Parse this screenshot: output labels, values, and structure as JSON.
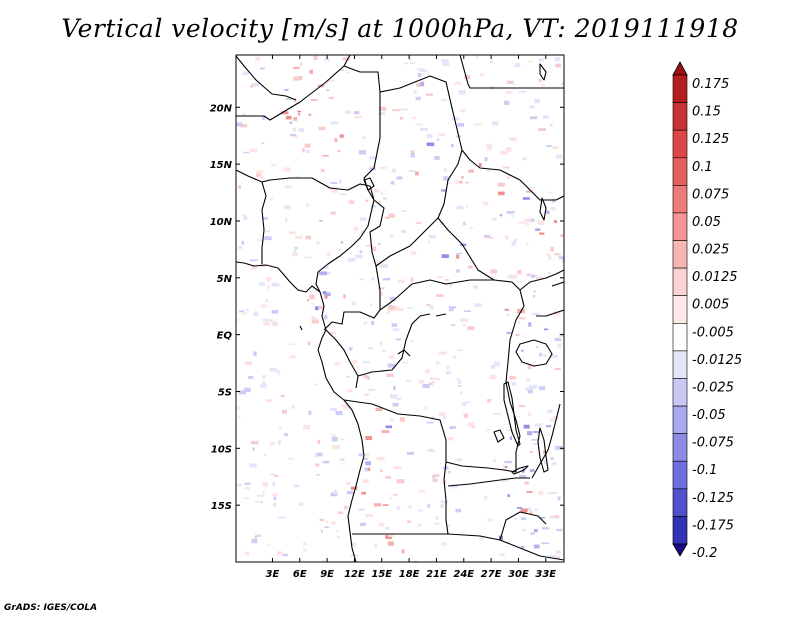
{
  "title": "Vertical velocity [m/s] at 1000hPa, VT: 2019111918",
  "credit": "GrADS: IGES/COLA",
  "map": {
    "lon_range": [
      -1,
      35
    ],
    "lat_range": [
      -20,
      24.6
    ],
    "lon_ticks": [
      {
        "value": 3,
        "label": "3E"
      },
      {
        "value": 6,
        "label": "6E"
      },
      {
        "value": 9,
        "label": "9E"
      },
      {
        "value": 12,
        "label": "12E"
      },
      {
        "value": 15,
        "label": "15E"
      },
      {
        "value": 18,
        "label": "18E"
      },
      {
        "value": 21,
        "label": "21E"
      },
      {
        "value": 24,
        "label": "24E"
      },
      {
        "value": 27,
        "label": "27E"
      },
      {
        "value": 30,
        "label": "30E"
      },
      {
        "value": 33,
        "label": "33E"
      }
    ],
    "lat_ticks": [
      {
        "value": 20,
        "label": "20N"
      },
      {
        "value": 15,
        "label": "15N"
      },
      {
        "value": 10,
        "label": "10N"
      },
      {
        "value": 5,
        "label": "5N"
      },
      {
        "value": 0,
        "label": "EQ"
      },
      {
        "value": -5,
        "label": "5S"
      },
      {
        "value": -10,
        "label": "10S"
      },
      {
        "value": -15,
        "label": "15S"
      }
    ]
  },
  "colorbar": {
    "top_color": "#9b1010",
    "bottom_color": "#1a0a8a",
    "levels": [
      {
        "label": "0.175",
        "color": "#b41e1e"
      },
      {
        "label": "0.15",
        "color": "#c83232"
      },
      {
        "label": "0.125",
        "color": "#dc4646"
      },
      {
        "label": "0.1",
        "color": "#e65f5f"
      },
      {
        "label": "0.075",
        "color": "#ef7a7a"
      },
      {
        "label": "0.05",
        "color": "#f59696"
      },
      {
        "label": "0.025",
        "color": "#f9b4b4"
      },
      {
        "label": "0.0125",
        "color": "#fcd2d2"
      },
      {
        "label": "0.005",
        "color": "#fee8e8"
      },
      {
        "label": "-0.005",
        "color": "#ffffff"
      },
      {
        "label": "-0.0125",
        "color": "#e6e6fa"
      },
      {
        "label": "-0.025",
        "color": "#c8c8f5"
      },
      {
        "label": "-0.05",
        "color": "#aaaaf0"
      },
      {
        "label": "-0.075",
        "color": "#8c8ce6"
      },
      {
        "label": "-0.1",
        "color": "#6e6ede"
      },
      {
        "label": "-0.125",
        "color": "#5050cd"
      },
      {
        "label": "-0.175",
        "color": "#3232b4"
      },
      {
        "label": "-0.2",
        "color": "#1e1496"
      }
    ]
  }
}
